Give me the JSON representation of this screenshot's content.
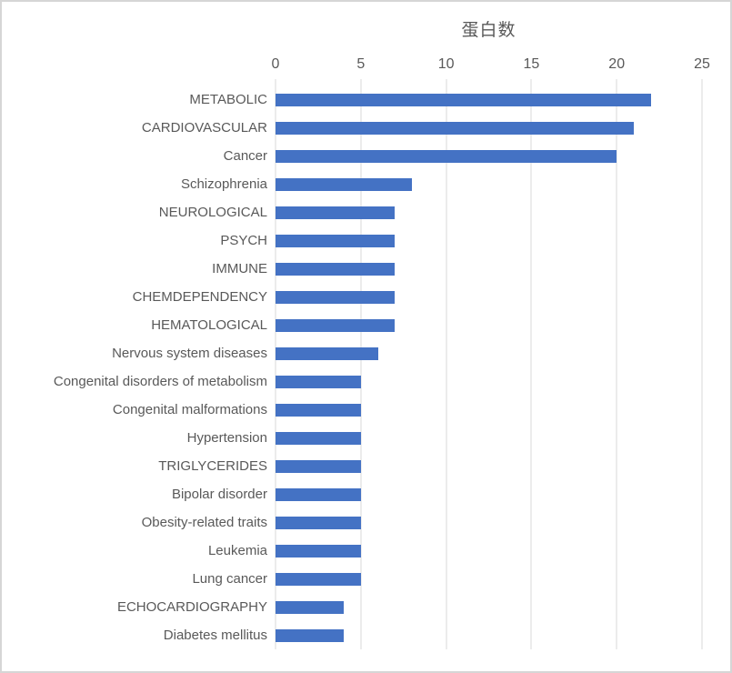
{
  "chart": {
    "title": "蛋白数"
  },
  "chart_data": {
    "type": "bar",
    "orientation": "horizontal",
    "title": "蛋白数",
    "xlabel": "",
    "ylabel": "",
    "xlim": [
      0,
      25
    ],
    "xticks": [
      0,
      5,
      10,
      15,
      20,
      25
    ],
    "axis_position": "top",
    "grid": true,
    "legend": false,
    "categories": [
      "METABOLIC",
      "CARDIOVASCULAR",
      "Cancer",
      "Schizophrenia",
      "NEUROLOGICAL",
      "PSYCH",
      "IMMUNE",
      "CHEMDEPENDENCY",
      "HEMATOLOGICAL",
      "Nervous system diseases",
      "Congenital disorders of metabolism",
      "Congenital malformations",
      "Hypertension",
      "TRIGLYCERIDES",
      "Bipolar disorder",
      "Obesity-related traits",
      "Leukemia",
      "Lung cancer",
      "ECHOCARDIOGRAPHY",
      "Diabetes mellitus"
    ],
    "values": [
      22,
      21,
      20,
      8,
      7,
      7,
      7,
      7,
      7,
      6,
      5,
      5,
      5,
      5,
      5,
      5,
      5,
      5,
      4,
      4
    ],
    "bar_color": "#4472C4",
    "gridline_color": "#D9D9D9",
    "text_color": "#595959"
  }
}
